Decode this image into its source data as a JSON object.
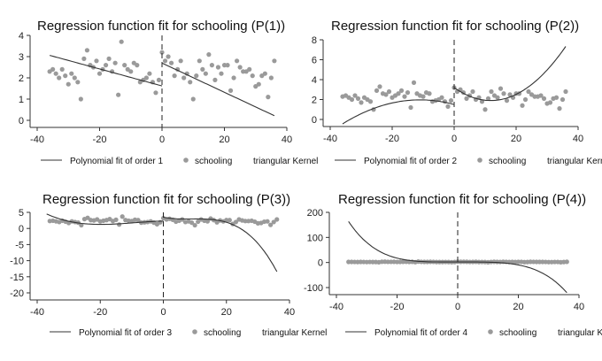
{
  "chart_data": [
    {
      "type": "scatter",
      "title": "Regression function fit for schooling (P(1))",
      "legend": [
        "Polynomial fit of order 1",
        "schooling",
        "triangular Kernel"
      ],
      "xlim": [
        -40,
        40
      ],
      "ylim": [
        0,
        4
      ],
      "xticks": [
        -40,
        -20,
        0,
        20,
        40
      ],
      "yticks": [
        0,
        1,
        2,
        3,
        4
      ],
      "cutoff": 0,
      "scatter": [
        [
          -36,
          2.3
        ],
        [
          -35,
          2.4
        ],
        [
          -34,
          2.2
        ],
        [
          -33,
          2.0
        ],
        [
          -32,
          2.4
        ],
        [
          -31,
          2.1
        ],
        [
          -30,
          1.7
        ],
        [
          -29,
          2.2
        ],
        [
          -28,
          2.0
        ],
        [
          -27,
          1.8
        ],
        [
          -26,
          1.0
        ],
        [
          -25,
          2.9
        ],
        [
          -24,
          3.3
        ],
        [
          -23,
          2.6
        ],
        [
          -22,
          2.5
        ],
        [
          -21,
          2.8
        ],
        [
          -20,
          2.2
        ],
        [
          -19,
          2.4
        ],
        [
          -18,
          2.6
        ],
        [
          -17,
          2.9
        ],
        [
          -16,
          2.3
        ],
        [
          -15,
          2.7
        ],
        [
          -14,
          1.2
        ],
        [
          -13,
          3.7
        ],
        [
          -12,
          2.6
        ],
        [
          -11,
          2.4
        ],
        [
          -10,
          2.3
        ],
        [
          -9,
          2.7
        ],
        [
          -8,
          2.6
        ],
        [
          -7,
          1.8
        ],
        [
          -6,
          1.9
        ],
        [
          -5,
          2.0
        ],
        [
          -4,
          2.2
        ],
        [
          -3,
          1.8
        ],
        [
          -2,
          1.3
        ],
        [
          -1,
          1.9
        ],
        [
          0,
          3.2
        ],
        [
          1,
          2.8
        ],
        [
          2,
          3.0
        ],
        [
          3,
          2.7
        ],
        [
          4,
          2.1
        ],
        [
          5,
          2.4
        ],
        [
          6,
          2.8
        ],
        [
          7,
          2.0
        ],
        [
          8,
          2.2
        ],
        [
          9,
          1.8
        ],
        [
          10,
          1.0
        ],
        [
          11,
          2.1
        ],
        [
          12,
          2.8
        ],
        [
          13,
          2.4
        ],
        [
          14,
          2.2
        ],
        [
          15,
          3.1
        ],
        [
          16,
          2.6
        ],
        [
          17,
          1.9
        ],
        [
          18,
          2.5
        ],
        [
          19,
          2.2
        ],
        [
          20,
          2.6
        ],
        [
          21,
          2.6
        ],
        [
          22,
          1.4
        ],
        [
          23,
          2.0
        ],
        [
          24,
          2.8
        ],
        [
          25,
          2.5
        ],
        [
          26,
          2.3
        ],
        [
          27,
          2.3
        ],
        [
          28,
          2.4
        ],
        [
          29,
          2.1
        ],
        [
          30,
          1.6
        ],
        [
          31,
          1.7
        ],
        [
          32,
          2.1
        ],
        [
          33,
          2.2
        ],
        [
          34,
          1.1
        ],
        [
          35,
          2.0
        ],
        [
          36,
          2.8
        ]
      ],
      "fit_left": {
        "coef": [
          1.62,
          -0.04
        ],
        "range": [
          -36,
          0
        ]
      },
      "fit_right": {
        "coef": [
          2.7,
          -0.069
        ],
        "range": [
          0,
          36
        ]
      }
    },
    {
      "type": "scatter",
      "title": "Regression function fit for schooling (P(2))",
      "legend": [
        "Polynomial fit of order 2",
        "schooling",
        "triangular Kernel"
      ],
      "xlim": [
        -40,
        40
      ],
      "ylim": [
        0,
        8
      ],
      "xticks": [
        -40,
        -20,
        0,
        20,
        40
      ],
      "yticks": [
        0,
        2,
        4,
        6,
        8
      ],
      "cutoff": 0,
      "scatter": [
        [
          -36,
          2.3
        ],
        [
          -35,
          2.4
        ],
        [
          -34,
          2.2
        ],
        [
          -33,
          2.0
        ],
        [
          -32,
          2.4
        ],
        [
          -31,
          2.1
        ],
        [
          -30,
          1.7
        ],
        [
          -29,
          2.2
        ],
        [
          -28,
          2.0
        ],
        [
          -27,
          1.8
        ],
        [
          -26,
          1.0
        ],
        [
          -25,
          2.9
        ],
        [
          -24,
          3.3
        ],
        [
          -23,
          2.6
        ],
        [
          -22,
          2.5
        ],
        [
          -21,
          2.8
        ],
        [
          -20,
          2.2
        ],
        [
          -19,
          2.4
        ],
        [
          -18,
          2.6
        ],
        [
          -17,
          2.9
        ],
        [
          -16,
          2.3
        ],
        [
          -15,
          2.7
        ],
        [
          -14,
          1.2
        ],
        [
          -13,
          3.7
        ],
        [
          -12,
          2.6
        ],
        [
          -11,
          2.4
        ],
        [
          -10,
          2.3
        ],
        [
          -9,
          2.7
        ],
        [
          -8,
          2.6
        ],
        [
          -7,
          1.8
        ],
        [
          -6,
          1.9
        ],
        [
          -5,
          2.0
        ],
        [
          -4,
          2.2
        ],
        [
          -3,
          1.8
        ],
        [
          -2,
          1.3
        ],
        [
          -1,
          1.9
        ],
        [
          0,
          3.2
        ],
        [
          1,
          2.8
        ],
        [
          2,
          3.0
        ],
        [
          3,
          2.7
        ],
        [
          4,
          2.1
        ],
        [
          5,
          2.4
        ],
        [
          6,
          2.8
        ],
        [
          7,
          2.0
        ],
        [
          8,
          2.2
        ],
        [
          9,
          1.8
        ],
        [
          10,
          1.0
        ],
        [
          11,
          2.1
        ],
        [
          12,
          2.8
        ],
        [
          13,
          2.4
        ],
        [
          14,
          2.2
        ],
        [
          15,
          3.1
        ],
        [
          16,
          2.6
        ],
        [
          17,
          1.9
        ],
        [
          18,
          2.5
        ],
        [
          19,
          2.2
        ],
        [
          20,
          2.6
        ],
        [
          21,
          2.6
        ],
        [
          22,
          1.4
        ],
        [
          23,
          2.0
        ],
        [
          24,
          2.8
        ],
        [
          25,
          2.5
        ],
        [
          26,
          2.3
        ],
        [
          27,
          2.3
        ],
        [
          28,
          2.4
        ],
        [
          29,
          2.1
        ],
        [
          30,
          1.6
        ],
        [
          31,
          1.7
        ],
        [
          32,
          2.1
        ],
        [
          33,
          2.2
        ],
        [
          34,
          1.1
        ],
        [
          35,
          2.0
        ],
        [
          36,
          2.8
        ]
      ],
      "fit_left": {
        "coef": [
          1.5,
          -0.085,
          -0.00386
        ],
        "range": [
          -36,
          0
        ]
      },
      "fit_right": {
        "coef": [
          3.2,
          -0.22,
          0.0093
        ],
        "range": [
          0,
          36
        ]
      }
    },
    {
      "type": "scatter",
      "title": "Regression function fit for schooling (P(3))",
      "legend": [
        "Polynomial fit of order 3",
        "schooling",
        "triangular Kernel"
      ],
      "xlim": [
        -40,
        40
      ],
      "ylim": [
        -20,
        5
      ],
      "xticks": [
        -40,
        -20,
        0,
        20,
        40
      ],
      "yticks": [
        5,
        0,
        -5,
        -10,
        -15,
        -20
      ],
      "cutoff": 0,
      "scatter": [
        [
          -36,
          2.3
        ],
        [
          -35,
          2.4
        ],
        [
          -34,
          2.2
        ],
        [
          -33,
          2.0
        ],
        [
          -32,
          2.4
        ],
        [
          -31,
          2.1
        ],
        [
          -30,
          1.7
        ],
        [
          -29,
          2.2
        ],
        [
          -28,
          2.0
        ],
        [
          -27,
          1.8
        ],
        [
          -26,
          1.0
        ],
        [
          -25,
          2.9
        ],
        [
          -24,
          3.3
        ],
        [
          -23,
          2.6
        ],
        [
          -22,
          2.5
        ],
        [
          -21,
          2.8
        ],
        [
          -20,
          2.2
        ],
        [
          -19,
          2.4
        ],
        [
          -18,
          2.6
        ],
        [
          -17,
          2.9
        ],
        [
          -16,
          2.3
        ],
        [
          -15,
          2.7
        ],
        [
          -14,
          1.2
        ],
        [
          -13,
          3.7
        ],
        [
          -12,
          2.6
        ],
        [
          -11,
          2.4
        ],
        [
          -10,
          2.3
        ],
        [
          -9,
          2.7
        ],
        [
          -8,
          2.6
        ],
        [
          -7,
          1.8
        ],
        [
          -6,
          1.9
        ],
        [
          -5,
          2.0
        ],
        [
          -4,
          2.2
        ],
        [
          -3,
          1.8
        ],
        [
          -2,
          1.3
        ],
        [
          -1,
          1.9
        ],
        [
          0,
          3.2
        ],
        [
          1,
          2.8
        ],
        [
          2,
          3.0
        ],
        [
          3,
          2.7
        ],
        [
          4,
          2.1
        ],
        [
          5,
          2.4
        ],
        [
          6,
          2.8
        ],
        [
          7,
          2.0
        ],
        [
          8,
          2.2
        ],
        [
          9,
          1.8
        ],
        [
          10,
          1.0
        ],
        [
          11,
          2.1
        ],
        [
          12,
          2.8
        ],
        [
          13,
          2.4
        ],
        [
          14,
          2.2
        ],
        [
          15,
          3.1
        ],
        [
          16,
          2.6
        ],
        [
          17,
          1.9
        ],
        [
          18,
          2.5
        ],
        [
          19,
          2.2
        ],
        [
          20,
          2.6
        ],
        [
          21,
          2.6
        ],
        [
          22,
          1.4
        ],
        [
          23,
          2.0
        ],
        [
          24,
          2.8
        ],
        [
          25,
          2.5
        ],
        [
          26,
          2.3
        ],
        [
          27,
          2.3
        ],
        [
          28,
          2.4
        ],
        [
          29,
          2.1
        ],
        [
          30,
          1.6
        ],
        [
          31,
          1.7
        ],
        [
          32,
          2.1
        ],
        [
          33,
          2.2
        ],
        [
          34,
          1.1
        ],
        [
          35,
          2.0
        ],
        [
          36,
          2.8
        ]
      ],
      "fit_left": {
        "coef": [
          2.3,
          0.02,
          -0.006,
          -0.00022
        ],
        "range": [
          -37,
          0
        ]
      },
      "fit_right": {
        "coef": [
          3.5,
          -0.2,
          0.023,
          -0.000847
        ],
        "range": [
          0,
          36
        ]
      }
    },
    {
      "type": "scatter",
      "title": "Regression function fit for schooling (P(4))",
      "legend": [
        "Polynomial fit of order 4",
        "schooling",
        "triangular Kernel"
      ],
      "xlim": [
        -40,
        40
      ],
      "ylim": [
        -100,
        200
      ],
      "xticks": [
        -40,
        -20,
        0,
        20,
        40
      ],
      "yticks": [
        200,
        100,
        0,
        -100
      ],
      "cutoff": 0,
      "scatter": [
        [
          -36,
          2.3
        ],
        [
          -35,
          2.4
        ],
        [
          -34,
          2.2
        ],
        [
          -33,
          2.0
        ],
        [
          -32,
          2.4
        ],
        [
          -31,
          2.1
        ],
        [
          -30,
          1.7
        ],
        [
          -29,
          2.2
        ],
        [
          -28,
          2.0
        ],
        [
          -27,
          1.8
        ],
        [
          -26,
          1.0
        ],
        [
          -25,
          2.9
        ],
        [
          -24,
          3.3
        ],
        [
          -23,
          2.6
        ],
        [
          -22,
          2.5
        ],
        [
          -21,
          2.8
        ],
        [
          -20,
          2.2
        ],
        [
          -19,
          2.4
        ],
        [
          -18,
          2.6
        ],
        [
          -17,
          2.9
        ],
        [
          -16,
          2.3
        ],
        [
          -15,
          2.7
        ],
        [
          -14,
          1.2
        ],
        [
          -13,
          3.7
        ],
        [
          -12,
          2.6
        ],
        [
          -11,
          2.4
        ],
        [
          -10,
          2.3
        ],
        [
          -9,
          2.7
        ],
        [
          -8,
          2.6
        ],
        [
          -7,
          1.8
        ],
        [
          -6,
          1.9
        ],
        [
          -5,
          2.0
        ],
        [
          -4,
          2.2
        ],
        [
          -3,
          1.8
        ],
        [
          -2,
          1.3
        ],
        [
          -1,
          1.9
        ],
        [
          0,
          3.2
        ],
        [
          1,
          2.8
        ],
        [
          2,
          3.0
        ],
        [
          3,
          2.7
        ],
        [
          4,
          2.1
        ],
        [
          5,
          2.4
        ],
        [
          6,
          2.8
        ],
        [
          7,
          2.0
        ],
        [
          8,
          2.2
        ],
        [
          9,
          1.8
        ],
        [
          10,
          1.0
        ],
        [
          11,
          2.1
        ],
        [
          12,
          2.8
        ],
        [
          13,
          2.4
        ],
        [
          14,
          2.2
        ],
        [
          15,
          3.1
        ],
        [
          16,
          2.6
        ],
        [
          17,
          1.9
        ],
        [
          18,
          2.5
        ],
        [
          19,
          2.2
        ],
        [
          20,
          2.6
        ],
        [
          21,
          2.6
        ],
        [
          22,
          1.4
        ],
        [
          23,
          2.0
        ],
        [
          24,
          2.8
        ],
        [
          25,
          2.5
        ],
        [
          26,
          2.3
        ],
        [
          27,
          2.3
        ],
        [
          28,
          2.4
        ],
        [
          29,
          2.1
        ],
        [
          30,
          1.6
        ],
        [
          31,
          1.7
        ],
        [
          32,
          2.1
        ],
        [
          33,
          2.2
        ],
        [
          34,
          1.1
        ],
        [
          35,
          2.0
        ],
        [
          36,
          2.8
        ]
      ],
      "fit_left": {
        "coef": [
          2,
          0,
          0,
          0,
          9.62e-05
        ],
        "range": [
          -36,
          0
        ]
      },
      "fit_right": {
        "coef": [
          2,
          0,
          0,
          0,
          -7.28e-05
        ],
        "range": [
          0,
          36
        ]
      }
    }
  ]
}
